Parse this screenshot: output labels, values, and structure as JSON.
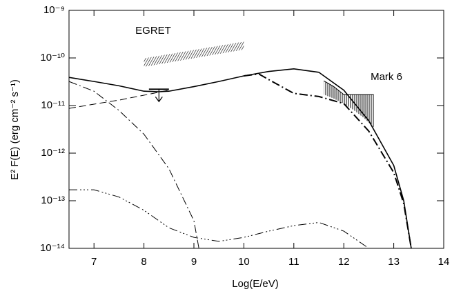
{
  "chart_data": {
    "type": "line",
    "xlabel": "Log(E/eV)",
    "ylabel": "E² F(E) (erg cm⁻² s⁻¹)",
    "xlim": [
      6.5,
      14
    ],
    "xticks": [
      7,
      8,
      9,
      10,
      11,
      12,
      13,
      14
    ],
    "ylim": [
      1e-14,
      1e-09
    ],
    "log_y": true,
    "yticks": [
      {
        "value": 1e-14,
        "label": "10⁻¹⁴"
      },
      {
        "value": 1e-13,
        "label": "10⁻¹³"
      },
      {
        "value": 1e-12,
        "label": "10⁻¹²"
      },
      {
        "value": 1e-11,
        "label": "10⁻¹¹"
      },
      {
        "value": 1e-10,
        "label": "10⁻¹⁰"
      },
      {
        "value": 1e-09,
        "label": "10⁻⁹"
      }
    ],
    "series": [
      {
        "color": "#000000",
        "linestyle": "solid",
        "linewidth": 1.6,
        "x": [
          6.5,
          7,
          7.5,
          8,
          8.3,
          8.5,
          9,
          9.5,
          10,
          10.5,
          11,
          11.5,
          12,
          12.5,
          13,
          13.2,
          13.35
        ],
        "values": [
          3.9e-11,
          3.2e-11,
          2.6e-11,
          2e-11,
          1.95e-11,
          2e-11,
          2.5e-11,
          3.2e-11,
          4.2e-11,
          5.2e-11,
          5.9e-11,
          5e-11,
          2.1e-11,
          4.8e-12,
          5.5e-13,
          1e-13,
          1e-14
        ]
      },
      {
        "color": "#000000",
        "linestyle": "dashdot",
        "linewidth": 2,
        "x": [
          10,
          10.3,
          10.5,
          11,
          11.5,
          12,
          12.5,
          13,
          13.2,
          13.35
        ],
        "values": [
          4.2e-11,
          4.6e-11,
          3.5e-11,
          1.8e-11,
          1.55e-11,
          1.1e-11,
          2.9e-12,
          3.9e-13,
          8.7e-14,
          1e-14
        ]
      },
      {
        "color": "#000000",
        "linestyle": "dashed",
        "linewidth": 1,
        "x": [
          6.5,
          7,
          7.5,
          8,
          8.5
        ],
        "values": [
          8.7e-12,
          1.07e-11,
          1.3e-11,
          1.65e-11,
          2.1e-11
        ]
      },
      {
        "color": "#000000",
        "linestyle": "dashdot",
        "linewidth": 1,
        "x": [
          6.5,
          7,
          7.5,
          8,
          8.5,
          9,
          9.1
        ],
        "values": [
          3.2e-11,
          2e-11,
          7.9e-12,
          2.5e-12,
          4.7e-13,
          3.8e-14,
          1e-14
        ]
      },
      {
        "color": "#000000",
        "linestyle": "dashdotdotdot",
        "linewidth": 1,
        "x": [
          6.5,
          7,
          7.5,
          8,
          8.5,
          9,
          9.5,
          10,
          10.5,
          11,
          11.5,
          12,
          12.5
        ],
        "values": [
          1.7e-13,
          1.7e-13,
          1.2e-13,
          6.3e-14,
          2.7e-14,
          1.7e-14,
          1.4e-14,
          1.7e-14,
          2.3e-14,
          3e-14,
          3.5e-14,
          2.3e-14,
          1e-14
        ]
      }
    ],
    "egret": {
      "label": "EGRET",
      "x": [
        8,
        10
      ],
      "low": [
        6.5e-11,
        1.5e-10
      ],
      "high": [
        9.8e-11,
        2.2e-10
      ]
    },
    "mark6": {
      "label": "Mark 6",
      "x": [
        11.6,
        11.8,
        12.0,
        12.2,
        12.4,
        12.6
      ],
      "low": [
        1.7e-11,
        1.4e-11,
        1.1e-11,
        8e-12,
        5.5e-12,
        3.5e-12
      ],
      "high": [
        3.3e-11,
        2.5e-11,
        1.7e-11,
        1.7e-11,
        1.7e-11,
        1.7e-11
      ]
    },
    "upper_limit": {
      "x": 8.3,
      "value": 2.2e-11
    }
  }
}
